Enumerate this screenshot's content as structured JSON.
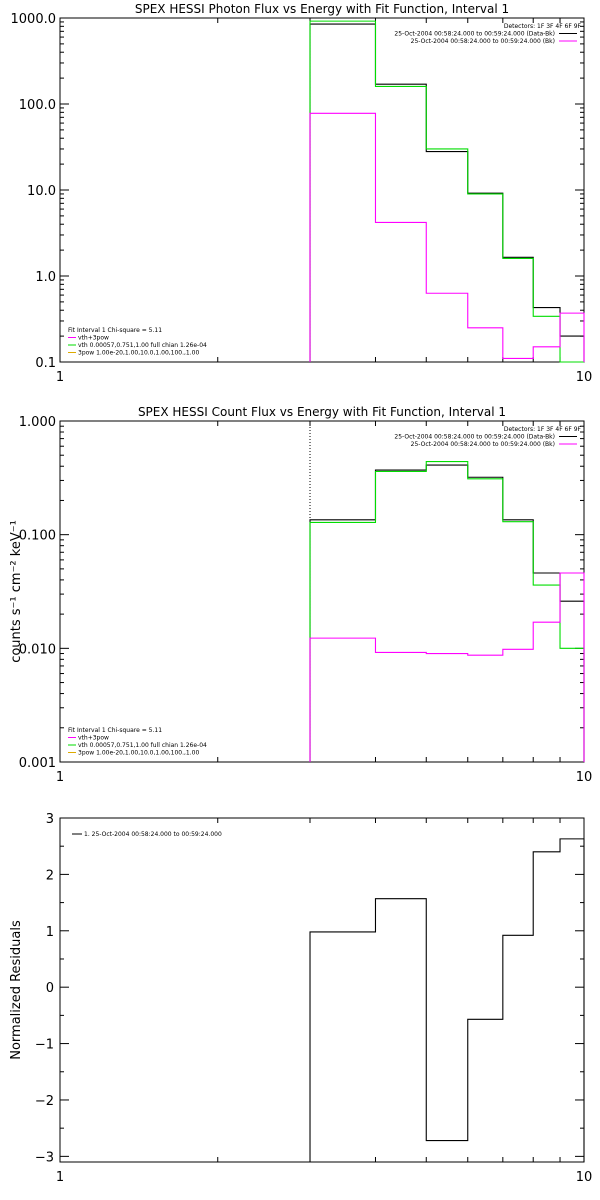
{
  "chart_data": [
    {
      "type": "line",
      "title": "SPEX HESSI Photon Flux vs Energy with Fit Function, Interval 1",
      "xlabel": "",
      "ylabel": "",
      "xscale": "log",
      "yscale": "log",
      "xlim": [
        1,
        10
      ],
      "ylim": [
        0.1,
        1000
      ],
      "xticks": [
        "1",
        "10"
      ],
      "yticks": [
        "1000.0",
        "100.0",
        "10.0",
        "1.0",
        "0.1"
      ],
      "dotted_marker_x": 3,
      "legend_upper": [
        "Detectors: 1F 3F 4F 6F 9F",
        "25-Oct-2004 00:58:24.000 to 00:59:24.000 (Data-Bk)",
        "25-Oct-2004 00:58:24.000 to 00:59:24.000 (Bk)"
      ],
      "legend_lower": [
        "Fit Interval 1    Chi-square = 5.11",
        "vth+3pow",
        "vth 0.00057,0.751,1.00  full chian 1.26e-04",
        "3pow 1.00e-20,1.00,10.0,1.00,100.,1.00"
      ],
      "bin_edges": [
        3,
        4,
        5,
        6,
        7,
        8,
        9,
        10
      ],
      "series": [
        {
          "color": "#000000",
          "values": [
            850,
            170,
            28,
            9.2,
            1.65,
            0.43,
            0.2
          ]
        },
        {
          "color": "#00dd00",
          "values": [
            920,
            160,
            30,
            9.0,
            1.6,
            0.34,
            0.1
          ]
        },
        {
          "color": "#ff00ff",
          "values": [
            78,
            4.2,
            0.63,
            0.25,
            0.11,
            0.15,
            0.37
          ]
        }
      ]
    },
    {
      "type": "line",
      "title": "SPEX HESSI Count Flux vs Energy with Fit Function, Interval 1",
      "xlabel": "",
      "ylabel": "counts s⁻¹ cm⁻² keV⁻¹",
      "xscale": "log",
      "yscale": "log",
      "xlim": [
        1,
        10
      ],
      "ylim": [
        0.001,
        1
      ],
      "xticks": [
        "1",
        "10"
      ],
      "yticks": [
        "1.000",
        "0.100",
        "0.010",
        "0.001"
      ],
      "dotted_marker_x": 3,
      "legend_upper": [
        "Detectors: 1F 3F 4F 6F 9F",
        "25-Oct-2004 00:58:24.000 to 00:59:24.000 (Data-Bk)",
        "25-Oct-2004 00:58:24.000 to 00:59:24.000 (Bk)"
      ],
      "legend_lower": [
        "Fit Interval 1    Chi-square = 5.11",
        "vth+3pow",
        "vth 0.00057,0.751,1.00  full chian 1.26e-04",
        "3pow 1.00e-20,1.00,10.0,1.00,100.,1.00"
      ],
      "bin_edges": [
        3,
        4,
        5,
        6,
        7,
        8,
        9,
        10
      ],
      "series": [
        {
          "color": "#000000",
          "values": [
            0.135,
            0.37,
            0.41,
            0.32,
            0.135,
            0.046,
            0.026
          ]
        },
        {
          "color": "#00dd00",
          "values": [
            0.128,
            0.36,
            0.44,
            0.31,
            0.13,
            0.036,
            0.01
          ]
        },
        {
          "color": "#ff00ff",
          "values": [
            0.0123,
            0.0092,
            0.009,
            0.0087,
            0.0098,
            0.017,
            0.046
          ]
        }
      ]
    },
    {
      "type": "line",
      "title": "",
      "xlabel": "",
      "ylabel": "Normalized Residuals",
      "xscale": "log",
      "yscale": "linear",
      "xlim": [
        1,
        10
      ],
      "ylim": [
        -3.1,
        3
      ],
      "xticks": [
        "1",
        "10"
      ],
      "yticks": [
        "3",
        "2",
        "1",
        "0",
        "−1",
        "−2",
        "−3"
      ],
      "legend_upper": [
        "1. 25-Oct-2004 00:58:24.000 to 00:59:24.000"
      ],
      "bin_edges": [
        3,
        4,
        5,
        6,
        7,
        8,
        9,
        10
      ],
      "series": [
        {
          "name": "1. 25-Oct-2004 00:58:24.000 to 00:59:24.000",
          "color": "#000000",
          "values": [
            0.98,
            1.57,
            -2.72,
            -0.57,
            0.92,
            2.4,
            2.63
          ]
        }
      ]
    }
  ]
}
